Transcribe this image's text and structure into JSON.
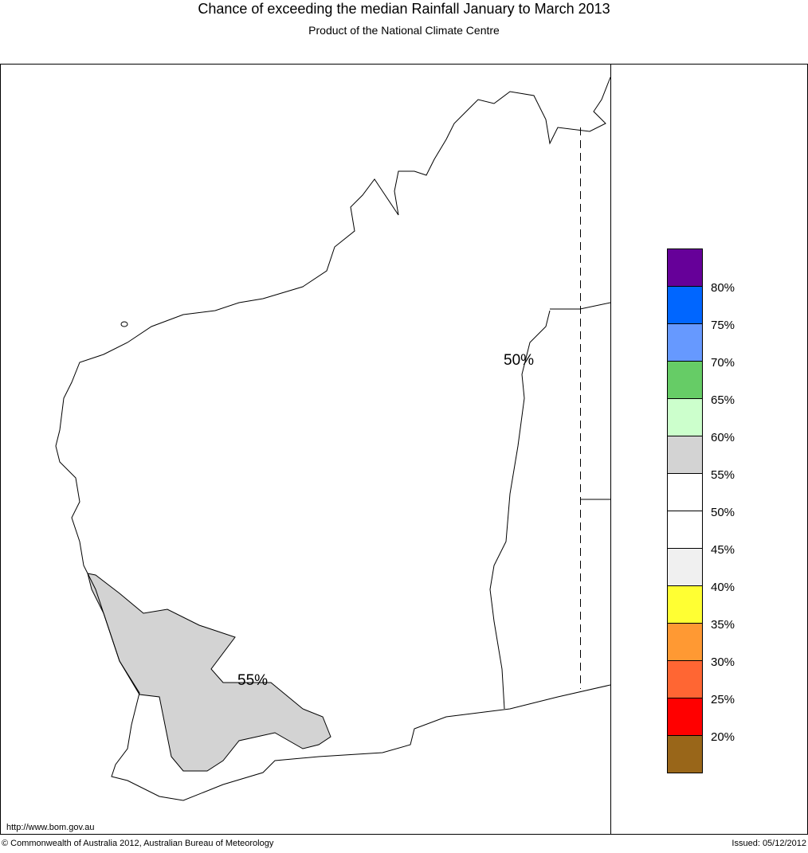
{
  "header": {
    "title": "Chance of exceeding the median Rainfall January to March 2013",
    "subtitle": "Product of the National Climate Centre"
  },
  "map": {
    "contour_labels": [
      "50%",
      "55%"
    ],
    "region_color": "#d3d3d3"
  },
  "legend": {
    "colors": [
      "#660099",
      "#0066ff",
      "#6699ff",
      "#66cc66",
      "#ccffcc",
      "#d3d3d3",
      "#ffffff",
      "#ffffff",
      "#f0f0f0",
      "#ffff33",
      "#ff9933",
      "#ff6633",
      "#ff0000",
      "#996619"
    ],
    "labels": [
      "80%",
      "75%",
      "70%",
      "65%",
      "60%",
      "55%",
      "50%",
      "45%",
      "40%",
      "35%",
      "30%",
      "25%",
      "20%"
    ]
  },
  "footer": {
    "url": "http://www.bom.gov.au",
    "copyright": "© Commonwealth of Australia 2012, Australian Bureau of Meteorology",
    "issued": "Issued: 05/12/2012"
  }
}
